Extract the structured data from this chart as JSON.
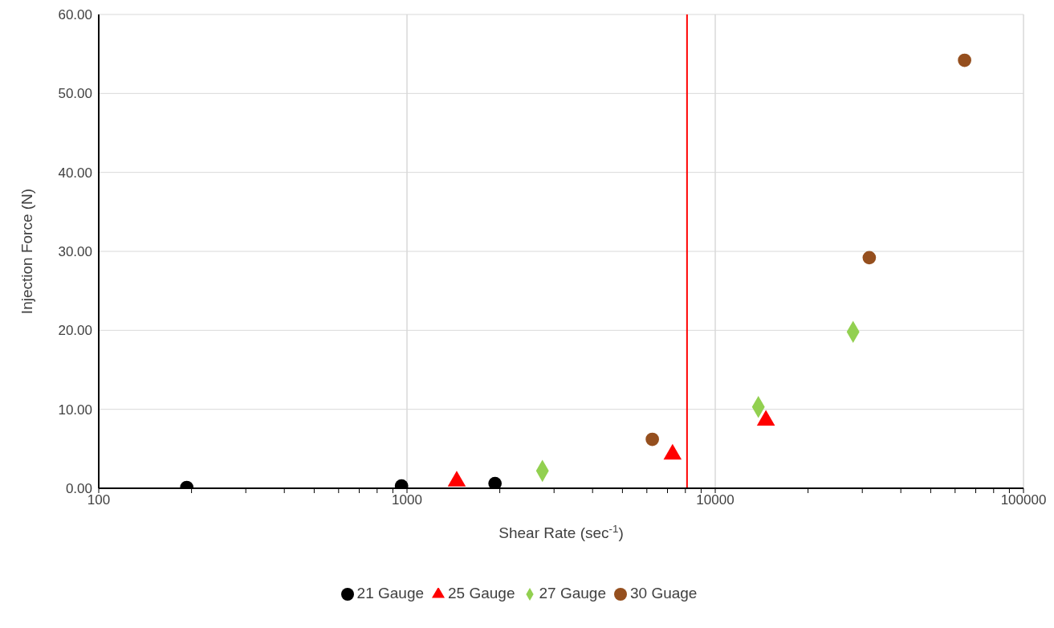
{
  "chart_data": {
    "type": "scatter",
    "xlabel": "Shear Rate (sec$^{-1}$)",
    "ylabel": "Injection Force (N)",
    "log": "x",
    "grid": true,
    "legend": "bottom",
    "xlim": [
      100,
      100000
    ],
    "xticks": [
      100,
      {
        "value": 200,
        "label": null
      },
      {
        "value": 300,
        "label": null
      },
      {
        "value": 400,
        "label": null
      },
      {
        "value": 500,
        "label": null
      },
      {
        "value": 600,
        "label": null
      },
      {
        "value": 700,
        "label": null
      },
      {
        "value": 800,
        "label": null
      },
      {
        "value": 900,
        "label": null
      },
      1000,
      {
        "value": 2000,
        "label": null
      },
      {
        "value": 3000,
        "label": null
      },
      {
        "value": 4000,
        "label": null
      },
      {
        "value": 5000,
        "label": null
      },
      {
        "value": 6000,
        "label": null
      },
      {
        "value": 7000,
        "label": null
      },
      {
        "value": 8000,
        "label": null
      },
      {
        "value": 9000,
        "label": null
      },
      10000,
      {
        "value": 20000,
        "label": null
      },
      {
        "value": 30000,
        "label": null
      },
      {
        "value": 40000,
        "label": null
      },
      {
        "value": 50000,
        "label": null
      },
      {
        "value": 60000,
        "label": null
      },
      {
        "value": 70000,
        "label": null
      },
      {
        "value": 80000,
        "label": null
      },
      {
        "value": 90000,
        "label": null
      },
      100000
    ],
    "ylim": [
      0,
      60
    ],
    "yticks": [
      {
        "value": 0,
        "label": "0.00"
      },
      {
        "value": 10,
        "label": "10.00"
      },
      {
        "value": 20,
        "label": "20.00"
      },
      {
        "value": 30,
        "label": "30.00"
      },
      {
        "value": 40,
        "label": "40.00"
      },
      {
        "value": 50,
        "label": "50.00"
      },
      {
        "value": 60,
        "label": "60.00"
      }
    ],
    "ref_lines": [
      {
        "axis": "x",
        "value": 8100,
        "color": "#ff0000"
      }
    ],
    "series": [
      {
        "name": "21 Gauge",
        "color": "#000000",
        "marker": "circle",
        "x": [
          193,
          960,
          1930
        ],
        "values": [
          0.1,
          0.3,
          0.6
        ]
      },
      {
        "name": "25 Gauge",
        "color": "#ff0000",
        "marker": "triangle",
        "x": [
          1450,
          7270,
          14600
        ],
        "values": [
          0.9,
          4.3,
          8.6
        ]
      },
      {
        "name": "27 Gauge",
        "color": "#92d050",
        "marker": "diamond",
        "x": [
          2750,
          13800,
          28000
        ],
        "values": [
          2.2,
          10.3,
          19.8
        ]
      },
      {
        "name": "30 Guage",
        "color": "#954f1e",
        "marker": "circle",
        "x": [
          6250,
          31600,
          64400
        ],
        "values": [
          6.2,
          29.2,
          54.2
        ]
      }
    ]
  }
}
